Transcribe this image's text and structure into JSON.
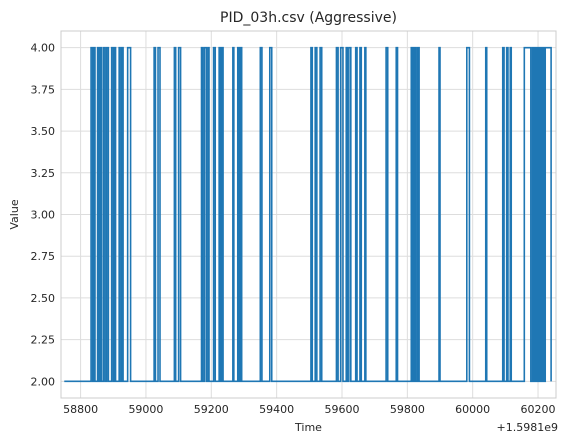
{
  "chart_data": {
    "type": "line",
    "title": "PID_03h.csv (Aggressive)",
    "xlabel": "Time",
    "ylabel": "Value",
    "x_offset_label": "+1.5981e9",
    "x_ticks": [
      58800,
      59000,
      59200,
      59400,
      59600,
      59800,
      60000,
      60200
    ],
    "x_tick_labels": [
      "58800",
      "59000",
      "59200",
      "59400",
      "59600",
      "59800",
      "60000",
      "60200"
    ],
    "y_ticks": [
      2.0,
      2.25,
      2.5,
      2.75,
      3.0,
      3.25,
      3.5,
      3.75,
      4.0
    ],
    "y_tick_labels": [
      "2.00",
      "2.25",
      "2.50",
      "2.75",
      "3.00",
      "3.25",
      "3.50",
      "3.75",
      "4.00"
    ],
    "xlim": [
      58740,
      60255
    ],
    "ylim": [
      1.9,
      4.1
    ],
    "grid": true,
    "line_color": "#1f77b4",
    "series": [
      {
        "step": "post",
        "x": [
          58750,
          58832,
          58837,
          58840,
          58844,
          58852,
          58856,
          58860,
          58864,
          58870,
          58875,
          58880,
          58885,
          58895,
          58900,
          58904,
          58907,
          58918,
          58921,
          58926,
          58930,
          58944,
          58946,
          58950,
          58953,
          59025,
          59029,
          59037,
          59043,
          59087,
          59091,
          59100,
          59106,
          59170,
          59174,
          59179,
          59185,
          59190,
          59193,
          59207,
          59212,
          59224,
          59228,
          59232,
          59236,
          59266,
          59269,
          59281,
          59285,
          59289,
          59293,
          59350,
          59355,
          59379,
          59385,
          59505,
          59509,
          59518,
          59523,
          59533,
          59538,
          59583,
          59588,
          59596,
          59603,
          59613,
          59616,
          59621,
          59627,
          59642,
          59646,
          59655,
          59659,
          59670,
          59673,
          59735,
          59740,
          59766,
          59770,
          59812,
          59815,
          59818,
          59821,
          59824,
          59827,
          59832,
          59836,
          59897,
          59900,
          59982,
          59990,
          60040,
          60043,
          60092,
          60096,
          60104,
          60108,
          60115,
          60118,
          60158,
          60175,
          60178,
          60183,
          60186,
          60190,
          60193,
          60197,
          60200,
          60204,
          60207,
          60210,
          60213,
          60216,
          60219,
          60222,
          60240
        ],
        "y": [
          2,
          4,
          2,
          4,
          2,
          4,
          2,
          4,
          2,
          4,
          2,
          4,
          2,
          4,
          2,
          4,
          2,
          4,
          2,
          4,
          2,
          4,
          4,
          4,
          2,
          4,
          2,
          4,
          2,
          4,
          2,
          4,
          2,
          4,
          2,
          4,
          2,
          4,
          2,
          4,
          2,
          4,
          2,
          4,
          2,
          4,
          2,
          4,
          2,
          4,
          2,
          4,
          2,
          4,
          2,
          4,
          2,
          4,
          2,
          4,
          2,
          4,
          2,
          4,
          2,
          4,
          2,
          4,
          2,
          4,
          2,
          4,
          2,
          4,
          2,
          4,
          2,
          4,
          2,
          4,
          2,
          4,
          2,
          4,
          2,
          4,
          2,
          4,
          2,
          4,
          2,
          4,
          2,
          4,
          2,
          4,
          2,
          4,
          2,
          4,
          4,
          2,
          4,
          2,
          4,
          2,
          4,
          2,
          4,
          2,
          4,
          2,
          4,
          2,
          4,
          2
        ]
      }
    ]
  }
}
